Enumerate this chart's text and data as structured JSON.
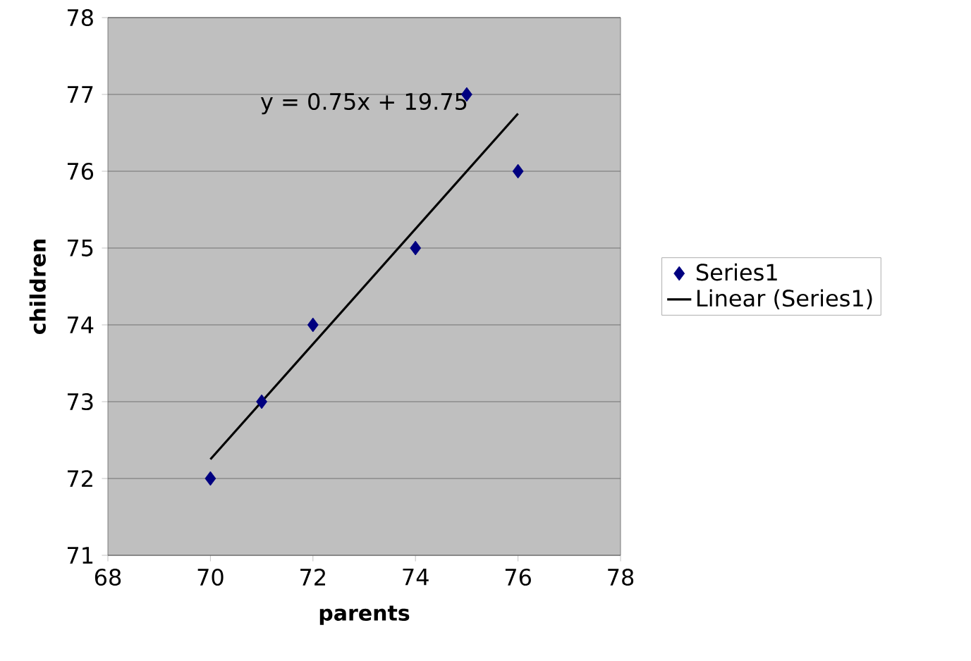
{
  "chart_data": {
    "type": "scatter",
    "xlabel": "parents",
    "ylabel": "children",
    "series": [
      {
        "name": "Series1",
        "color": "#000080",
        "marker": "diamond",
        "x": [
          70,
          71,
          72,
          74,
          75,
          76
        ],
        "values": [
          72,
          73,
          74,
          75,
          77,
          76
        ]
      },
      {
        "name": "Linear (Series1)",
        "type": "line",
        "color": "#000000",
        "marker": "none",
        "line_style": "solid",
        "x": [
          70,
          76
        ],
        "values": [
          72.25,
          76.75
        ]
      }
    ],
    "annotations": [
      "y = 0.75x + 19.75"
    ],
    "xlim": [
      68,
      78
    ],
    "xticks": [
      68,
      70,
      72,
      74,
      76,
      78
    ],
    "ylim": [
      71,
      78
    ],
    "yticks": [
      71,
      72,
      73,
      74,
      75,
      76,
      77,
      78
    ],
    "grid": "y",
    "legend": "right"
  }
}
